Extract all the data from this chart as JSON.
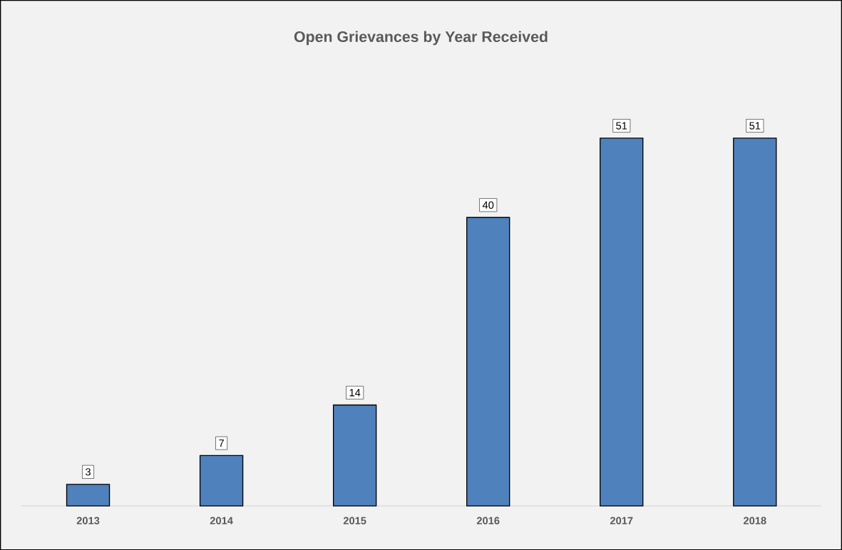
{
  "chart_data": {
    "type": "bar",
    "title": "Open Grievances by Year Received",
    "categories": [
      "2013",
      "2014",
      "2015",
      "2016",
      "2017",
      "2018"
    ],
    "values": [
      3,
      7,
      14,
      40,
      51,
      51
    ],
    "color": "#4f81bd",
    "data_labels": true
  }
}
